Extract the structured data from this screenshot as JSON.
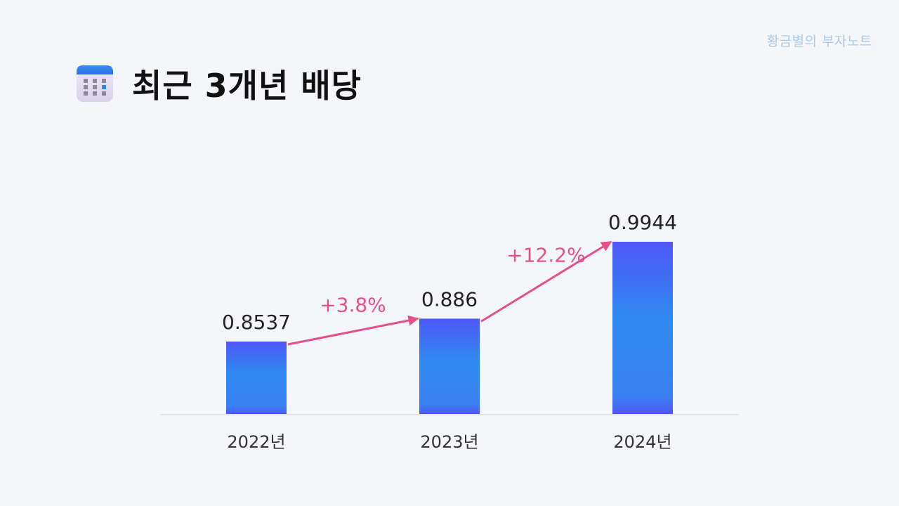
{
  "header": {
    "title": "최근 3개년 배당",
    "icon": "calendar-icon"
  },
  "watermark": "황금별의 부자노트",
  "colors": {
    "bar_top": "#4f57f7",
    "bar_mid": "#2f8af0",
    "arrow": "#e5508a",
    "background": "#f5f6fa"
  },
  "chart_data": {
    "type": "bar",
    "categories": [
      "2022년",
      "2023년",
      "2024년"
    ],
    "values": [
      0.8537,
      0.886,
      0.9944
    ],
    "value_labels": [
      "0.8537",
      "0.886",
      "0.9944"
    ],
    "changes": [
      {
        "from": 0,
        "to": 1,
        "label": "+3.8%"
      },
      {
        "from": 1,
        "to": 2,
        "label": "+12.2%"
      }
    ],
    "title": "",
    "xlabel": "",
    "ylabel": "",
    "grid": false
  }
}
